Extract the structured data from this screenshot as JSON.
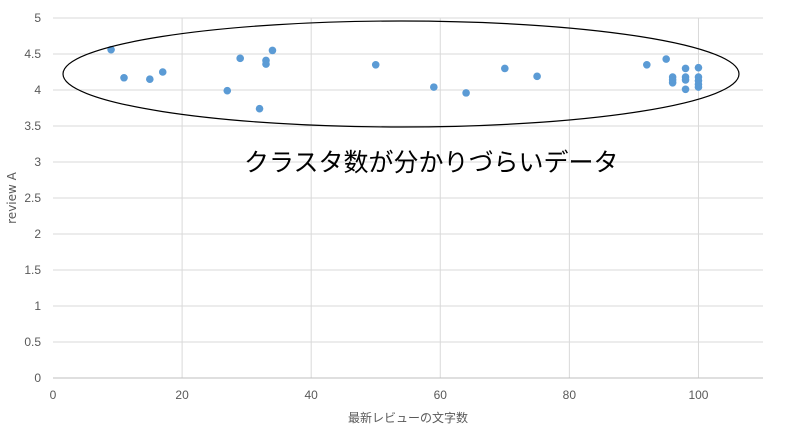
{
  "chart_data": {
    "type": "scatter",
    "xlabel": "最新レビューの文字数",
    "ylabel": "review A",
    "xlim": [
      0,
      110
    ],
    "ylim": [
      0,
      5
    ],
    "x_ticks": [
      0,
      20,
      40,
      60,
      80,
      100
    ],
    "y_ticks": [
      0,
      0.5,
      1,
      1.5,
      2,
      2.5,
      3,
      3.5,
      4,
      4.5,
      5
    ],
    "y_tick_labels": [
      "0",
      "0.5",
      "1",
      "1.5",
      "2",
      "2.5",
      "3",
      "3.5",
      "4",
      "4.5",
      "5"
    ],
    "grid": true,
    "marker_color": "#5b9bd5",
    "annotation": "クラスタ数が分かりづらいデータ",
    "points": [
      {
        "x": 9,
        "y": 4.56
      },
      {
        "x": 11,
        "y": 4.17
      },
      {
        "x": 15,
        "y": 4.15
      },
      {
        "x": 17,
        "y": 4.25
      },
      {
        "x": 27,
        "y": 3.99
      },
      {
        "x": 29,
        "y": 4.44
      },
      {
        "x": 32,
        "y": 3.74
      },
      {
        "x": 33,
        "y": 4.36
      },
      {
        "x": 33,
        "y": 4.41
      },
      {
        "x": 34,
        "y": 4.55
      },
      {
        "x": 50,
        "y": 4.35
      },
      {
        "x": 59,
        "y": 4.04
      },
      {
        "x": 64,
        "y": 3.96
      },
      {
        "x": 70,
        "y": 4.3
      },
      {
        "x": 75,
        "y": 4.19
      },
      {
        "x": 92,
        "y": 4.35
      },
      {
        "x": 95,
        "y": 4.43
      },
      {
        "x": 96,
        "y": 4.18
      },
      {
        "x": 96,
        "y": 4.14
      },
      {
        "x": 96,
        "y": 4.1
      },
      {
        "x": 98,
        "y": 4.3
      },
      {
        "x": 98,
        "y": 4.18
      },
      {
        "x": 98,
        "y": 4.14
      },
      {
        "x": 98,
        "y": 4.01
      },
      {
        "x": 100,
        "y": 4.31
      },
      {
        "x": 100,
        "y": 4.18
      },
      {
        "x": 100,
        "y": 4.13
      },
      {
        "x": 100,
        "y": 4.08
      },
      {
        "x": 100,
        "y": 4.04
      }
    ]
  }
}
